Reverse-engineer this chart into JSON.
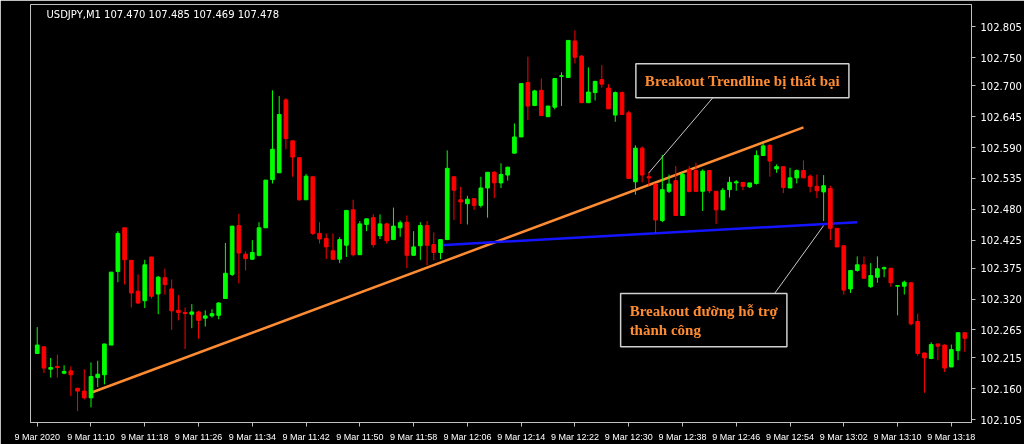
{
  "chart_data": {
    "type": "candlestick",
    "title": "USDJPY,M1  107.470 107.485 107.469 107.478",
    "x": [
      "2020-03-09T11:02",
      "2020-03-09T11:03",
      "2020-03-09T11:04",
      "2020-03-09T11:05",
      "2020-03-09T11:06",
      "2020-03-09T11:07",
      "2020-03-09T11:08",
      "2020-03-09T11:09",
      "2020-03-09T11:10",
      "2020-03-09T11:11",
      "2020-03-09T11:12",
      "2020-03-09T11:13",
      "2020-03-09T11:14",
      "2020-03-09T11:15",
      "2020-03-09T11:16",
      "2020-03-09T11:17",
      "2020-03-09T11:18",
      "2020-03-09T11:19",
      "2020-03-09T11:20",
      "2020-03-09T11:21",
      "2020-03-09T11:22",
      "2020-03-09T11:23",
      "2020-03-09T11:24",
      "2020-03-09T11:25",
      "2020-03-09T11:26",
      "2020-03-09T11:27",
      "2020-03-09T11:28",
      "2020-03-09T11:29",
      "2020-03-09T11:30",
      "2020-03-09T11:31",
      "2020-03-09T11:32",
      "2020-03-09T11:33",
      "2020-03-09T11:34",
      "2020-03-09T11:35",
      "2020-03-09T11:36",
      "2020-03-09T11:37",
      "2020-03-09T11:38",
      "2020-03-09T11:39",
      "2020-03-09T11:40",
      "2020-03-09T11:41",
      "2020-03-09T11:42",
      "2020-03-09T11:43",
      "2020-03-09T11:44",
      "2020-03-09T11:45",
      "2020-03-09T11:46",
      "2020-03-09T11:47",
      "2020-03-09T11:48",
      "2020-03-09T11:49",
      "2020-03-09T11:50",
      "2020-03-09T11:51",
      "2020-03-09T11:52",
      "2020-03-09T11:53",
      "2020-03-09T11:54",
      "2020-03-09T11:55",
      "2020-03-09T11:56",
      "2020-03-09T11:57",
      "2020-03-09T11:58",
      "2020-03-09T11:59",
      "2020-03-09T12:00",
      "2020-03-09T12:01",
      "2020-03-09T12:02",
      "2020-03-09T12:03",
      "2020-03-09T12:04",
      "2020-03-09T12:05",
      "2020-03-09T12:06",
      "2020-03-09T12:07",
      "2020-03-09T12:08",
      "2020-03-09T12:09",
      "2020-03-09T12:10",
      "2020-03-09T12:11",
      "2020-03-09T12:12",
      "2020-03-09T12:13",
      "2020-03-09T12:14",
      "2020-03-09T12:15",
      "2020-03-09T12:16",
      "2020-03-09T12:17",
      "2020-03-09T12:18",
      "2020-03-09T12:19",
      "2020-03-09T12:20",
      "2020-03-09T12:21",
      "2020-03-09T12:22",
      "2020-03-09T12:23",
      "2020-03-09T12:24",
      "2020-03-09T12:25",
      "2020-03-09T12:26",
      "2020-03-09T12:27",
      "2020-03-09T12:28",
      "2020-03-09T12:29",
      "2020-03-09T12:30",
      "2020-03-09T12:31",
      "2020-03-09T12:32",
      "2020-03-09T12:33",
      "2020-03-09T12:34",
      "2020-03-09T12:35",
      "2020-03-09T12:36",
      "2020-03-09T12:37",
      "2020-03-09T12:38",
      "2020-03-09T12:39",
      "2020-03-09T12:40",
      "2020-03-09T12:41",
      "2020-03-09T12:42",
      "2020-03-09T12:43",
      "2020-03-09T12:44",
      "2020-03-09T12:45",
      "2020-03-09T12:46",
      "2020-03-09T12:47",
      "2020-03-09T12:48",
      "2020-03-09T12:49",
      "2020-03-09T12:50",
      "2020-03-09T12:51",
      "2020-03-09T12:52",
      "2020-03-09T12:53",
      "2020-03-09T12:54",
      "2020-03-09T12:55",
      "2020-03-09T12:56",
      "2020-03-09T12:57",
      "2020-03-09T12:58",
      "2020-03-09T12:59",
      "2020-03-09T13:00",
      "2020-03-09T13:01",
      "2020-03-09T13:02",
      "2020-03-09T13:03",
      "2020-03-09T13:04",
      "2020-03-09T13:05",
      "2020-03-09T13:06",
      "2020-03-09T13:07",
      "2020-03-09T13:08",
      "2020-03-09T13:09",
      "2020-03-09T13:10",
      "2020-03-09T13:11",
      "2020-03-09T13:12",
      "2020-03-09T13:13",
      "2020-03-09T13:14",
      "2020-03-09T13:15",
      "2020-03-09T13:16",
      "2020-03-09T13:17",
      "2020-03-09T13:18",
      "2020-03-09T13:19",
      "2020-03-09T13:20"
    ],
    "ohlc": [
      [
        102.223,
        102.27,
        102.223,
        102.238
      ],
      [
        102.235,
        102.235,
        102.188,
        102.197
      ],
      [
        102.195,
        102.215,
        102.18,
        102.198
      ],
      [
        102.2,
        102.221,
        102.18,
        102.198
      ],
      [
        102.188,
        102.202,
        102.186,
        102.191
      ],
      [
        102.192,
        102.2,
        102.147,
        102.185
      ],
      [
        102.161,
        102.161,
        102.12,
        102.156
      ],
      [
        102.156,
        102.195,
        102.141,
        102.144
      ],
      [
        102.144,
        102.207,
        102.127,
        102.182
      ],
      [
        102.18,
        102.21,
        102.163,
        102.186
      ],
      [
        102.185,
        102.24,
        102.168,
        102.24
      ],
      [
        102.238,
        102.368,
        102.238,
        102.368
      ],
      [
        102.369,
        102.441,
        102.35,
        102.437
      ],
      [
        102.447,
        102.447,
        102.346,
        102.39
      ],
      [
        102.389,
        102.389,
        102.305,
        102.331
      ],
      [
        102.334,
        102.364,
        102.311,
        102.313
      ],
      [
        102.317,
        102.39,
        102.304,
        102.381
      ],
      [
        102.395,
        102.395,
        102.321,
        102.325
      ],
      [
        102.329,
        102.361,
        102.293,
        102.359
      ],
      [
        102.358,
        102.374,
        102.328,
        102.346
      ],
      [
        102.338,
        102.355,
        102.265,
        102.299
      ],
      [
        102.3,
        102.327,
        102.282,
        102.296
      ],
      [
        102.296,
        102.305,
        102.231,
        102.294
      ],
      [
        102.293,
        102.311,
        102.268,
        102.297
      ],
      [
        102.297,
        102.299,
        102.249,
        102.282
      ],
      [
        102.286,
        102.3,
        102.271,
        102.29
      ],
      [
        102.29,
        102.302,
        102.287,
        102.294
      ],
      [
        102.291,
        102.314,
        102.284,
        102.313
      ],
      [
        102.321,
        102.42,
        102.321,
        102.366
      ],
      [
        102.364,
        102.45,
        102.361,
        102.45
      ],
      [
        102.451,
        102.472,
        102.348,
        102.402
      ],
      [
        102.4,
        102.405,
        102.371,
        102.392
      ],
      [
        102.391,
        102.425,
        102.39,
        102.403
      ],
      [
        102.398,
        102.457,
        102.396,
        102.447
      ],
      [
        102.447,
        102.532,
        102.447,
        102.532
      ],
      [
        102.533,
        102.692,
        102.526,
        102.587
      ],
      [
        102.545,
        102.682,
        102.545,
        102.649
      ],
      [
        102.675,
        102.678,
        102.587,
        102.606
      ],
      [
        102.602,
        102.602,
        102.538,
        102.573
      ],
      [
        102.572,
        102.572,
        102.495,
        102.497
      ],
      [
        102.497,
        102.543,
        102.497,
        102.539
      ],
      [
        102.538,
        102.538,
        102.434,
        102.437
      ],
      [
        102.437,
        102.457,
        102.419,
        102.427
      ],
      [
        102.428,
        102.437,
        102.391,
        102.413
      ],
      [
        102.406,
        102.437,
        102.39,
        102.391
      ],
      [
        102.391,
        102.43,
        102.384,
        102.426
      ],
      [
        102.416,
        102.478,
        102.395,
        102.478
      ],
      [
        102.479,
        102.497,
        102.396,
        102.399
      ],
      [
        102.399,
        102.459,
        102.399,
        102.454
      ],
      [
        102.453,
        102.463,
        102.441,
        102.463
      ],
      [
        102.465,
        102.471,
        102.412,
        102.417
      ],
      [
        102.433,
        102.471,
        102.427,
        102.454
      ],
      [
        102.454,
        102.456,
        102.419,
        102.424
      ],
      [
        102.426,
        102.483,
        102.425,
        102.45
      ],
      [
        102.447,
        102.46,
        102.431,
        102.456
      ],
      [
        102.457,
        102.469,
        102.375,
        102.398
      ],
      [
        102.398,
        102.441,
        102.397,
        102.413
      ],
      [
        102.415,
        102.457,
        102.39,
        102.451
      ],
      [
        102.451,
        102.459,
        102.38,
        102.416
      ],
      [
        102.417,
        102.439,
        102.389,
        102.403
      ],
      [
        102.403,
        102.426,
        102.391,
        102.426
      ],
      [
        102.426,
        102.585,
        102.426,
        102.553
      ],
      [
        102.538,
        102.538,
        102.461,
        102.514
      ],
      [
        102.497,
        102.52,
        102.454,
        102.493
      ],
      [
        102.49,
        102.504,
        102.453,
        102.498
      ],
      [
        102.499,
        102.499,
        102.479,
        102.487
      ],
      [
        102.487,
        102.538,
        102.483,
        102.518
      ],
      [
        102.518,
        102.546,
        102.465,
        102.546
      ],
      [
        102.546,
        102.548,
        102.5,
        102.527
      ],
      [
        102.527,
        102.562,
        102.518,
        102.542
      ],
      [
        102.541,
        102.556,
        102.531,
        102.555
      ],
      [
        102.58,
        102.633,
        102.58,
        102.609
      ],
      [
        102.609,
        102.704,
        102.609,
        102.704
      ],
      [
        102.706,
        102.752,
        102.639,
        102.664
      ],
      [
        102.665,
        102.693,
        102.664,
        102.691
      ],
      [
        102.692,
        102.713,
        102.647,
        102.647
      ],
      [
        102.645,
        102.664,
        102.645,
        102.664
      ],
      [
        102.662,
        102.713,
        102.658,
        102.713
      ],
      [
        102.717,
        102.724,
        102.664,
        102.718
      ],
      [
        102.715,
        102.781,
        102.715,
        102.781
      ],
      [
        102.78,
        102.799,
        102.74,
        102.751
      ],
      [
        102.753,
        102.755,
        102.67,
        102.67
      ],
      [
        102.67,
        102.733,
        102.67,
        102.689
      ],
      [
        102.688,
        102.709,
        102.674,
        102.708
      ],
      [
        102.711,
        102.737,
        102.697,
        102.703
      ],
      [
        102.696,
        102.703,
        102.659,
        102.659
      ],
      [
        102.648,
        102.69,
        102.636,
        102.688
      ],
      [
        102.688,
        102.69,
        102.649,
        102.649
      ],
      [
        102.652,
        102.655,
        102.535,
        102.535
      ],
      [
        102.529,
        102.594,
        102.506,
        102.589
      ],
      [
        102.589,
        102.592,
        102.528,
        102.541
      ],
      [
        102.538,
        102.546,
        102.522,
        102.536
      ],
      [
        102.525,
        102.525,
        102.438,
        102.461
      ],
      [
        102.46,
        102.577,
        102.457,
        102.515
      ],
      [
        102.512,
        102.542,
        102.509,
        102.525
      ],
      [
        102.531,
        102.557,
        102.469,
        102.469
      ],
      [
        102.469,
        102.545,
        102.469,
        102.542
      ],
      [
        102.551,
        102.557,
        102.51,
        102.512
      ],
      [
        102.549,
        102.563,
        102.512,
        102.512
      ],
      [
        102.512,
        102.551,
        102.477,
        102.548
      ],
      [
        102.549,
        102.549,
        102.509,
        102.513
      ],
      [
        102.512,
        102.512,
        102.454,
        102.479
      ],
      [
        102.479,
        102.518,
        102.478,
        102.514
      ],
      [
        102.515,
        102.538,
        102.501,
        102.528
      ],
      [
        102.527,
        102.532,
        102.513,
        102.529
      ],
      [
        102.528,
        102.528,
        102.514,
        102.521
      ],
      [
        102.52,
        102.527,
        102.518,
        102.527
      ],
      [
        102.526,
        102.585,
        102.524,
        102.576
      ],
      [
        102.576,
        102.598,
        102.575,
        102.593
      ],
      [
        102.594,
        102.596,
        102.538,
        102.566
      ],
      [
        102.552,
        102.56,
        102.545,
        102.556
      ],
      [
        102.556,
        102.556,
        102.509,
        102.519
      ],
      [
        102.518,
        102.554,
        102.518,
        102.536
      ],
      [
        102.536,
        102.551,
        102.526,
        102.549
      ],
      [
        102.549,
        102.567,
        102.536,
        102.536
      ],
      [
        102.539,
        102.542,
        102.51,
        102.521
      ],
      [
        102.521,
        102.542,
        102.5,
        102.513
      ],
      [
        102.511,
        102.541,
        102.459,
        102.522
      ],
      [
        102.517,
        102.522,
        102.425,
        102.446
      ],
      [
        102.446,
        102.446,
        102.412,
        102.413
      ],
      [
        102.415,
        102.415,
        102.328,
        102.336
      ],
      [
        102.338,
        102.371,
        102.331,
        102.371
      ],
      [
        102.371,
        102.396,
        102.369,
        102.381
      ],
      [
        102.381,
        102.396,
        102.357,
        102.357
      ],
      [
        102.342,
        102.384,
        102.34,
        102.362
      ],
      [
        102.359,
        102.396,
        102.349,
        102.374
      ],
      [
        102.374,
        102.378,
        102.359,
        102.376
      ],
      [
        102.375,
        102.375,
        102.342,
        102.349
      ],
      [
        102.343,
        102.344,
        102.291,
        102.344
      ],
      [
        102.343,
        102.353,
        102.328,
        102.35
      ],
      [
        102.349,
        102.349,
        102.273,
        102.276
      ],
      [
        102.28,
        102.294,
        102.219,
        102.223
      ],
      [
        102.224,
        102.224,
        102.153,
        102.215
      ],
      [
        102.214,
        102.243,
        102.213,
        102.239
      ],
      [
        102.24,
        102.24,
        102.211,
        102.236
      ],
      [
        102.238,
        102.239,
        102.19,
        102.197
      ],
      [
        102.199,
        102.239,
        102.199,
        102.23
      ],
      [
        102.228,
        102.26,
        102.211,
        102.26
      ],
      [
        102.26,
        102.26,
        102.226,
        102.25
      ]
    ],
    "colors": [
      "#00ff00",
      "#ff0000",
      "#00ff00",
      "#ff0000",
      "#00ff00",
      "#ff0000",
      "#ff0000",
      "#ff0000",
      "#00ff00",
      "#00ff00",
      "#00ff00",
      "#00ff00",
      "#00ff00",
      "#ff0000",
      "#ff0000",
      "#ff0000",
      "#00ff00",
      "#ff0000",
      "#00ff00",
      "#ff0000",
      "#ff0000",
      "#ff0000",
      "#ff0000",
      "#00ff00",
      "#ff0000",
      "#00ff00",
      "#00ff00",
      "#00ff00",
      "#00ff00",
      "#00ff00",
      "#ff0000",
      "#ff0000",
      "#00ff00",
      "#00ff00",
      "#00ff00",
      "#00ff00",
      "#00ff00",
      "#ff0000",
      "#ff0000",
      "#ff0000",
      "#00ff00",
      "#ff0000",
      "#ff0000",
      "#ff0000",
      "#ff0000",
      "#00ff00",
      "#00ff00",
      "#ff0000",
      "#00ff00",
      "#00ff00",
      "#ff0000",
      "#00ff00",
      "#ff0000",
      "#00ff00",
      "#00ff00",
      "#ff0000",
      "#00ff00",
      "#00ff00",
      "#ff0000",
      "#ff0000",
      "#00ff00",
      "#00ff00",
      "#ff0000",
      "#ff0000",
      "#00ff00",
      "#ff0000",
      "#00ff00",
      "#00ff00",
      "#ff0000",
      "#00ff00",
      "#00ff00",
      "#00ff00",
      "#00ff00",
      "#ff0000",
      "#00ff00",
      "#ff0000",
      "#00ff00",
      "#00ff00",
      "#00ff00",
      "#00ff00",
      "#ff0000",
      "#ff0000",
      "#00ff00",
      "#00ff00",
      "#ff0000",
      "#ff0000",
      "#00ff00",
      "#ff0000",
      "#ff0000",
      "#00ff00",
      "#ff0000",
      "#ff0000",
      "#ff0000",
      "#00ff00",
      "#00ff00",
      "#ff0000",
      "#00ff00",
      "#ff0000",
      "#ff0000",
      "#00ff00",
      "#ff0000",
      "#ff0000",
      "#00ff00",
      "#00ff00",
      "#00ff00",
      "#ff0000",
      "#00ff00",
      "#00ff00",
      "#00ff00",
      "#ff0000",
      "#00ff00",
      "#ff0000",
      "#00ff00",
      "#00ff00",
      "#ff0000",
      "#ff0000",
      "#ff0000",
      "#00ff00",
      "#ff0000",
      "#ff0000",
      "#ff0000",
      "#00ff00",
      "#00ff00",
      "#ff0000",
      "#00ff00",
      "#00ff00",
      "#00ff00",
      "#ff0000",
      "#00ff00",
      "#00ff00",
      "#ff0000",
      "#ff0000",
      "#ff0000",
      "#00ff00",
      "#ff0000",
      "#ff0000",
      "#00ff00",
      "#00ff00",
      "#ff0000"
    ],
    "series": [
      {
        "type": "line",
        "color": "#ff8c32",
        "x": [
          "2020-03-09T11:10",
          "2020-03-09T12:56"
        ],
        "values": [
          102.153,
          102.626
        ]
      },
      {
        "type": "line",
        "color": "#1414ff",
        "x": [
          "2020-03-09T12:02",
          "2020-03-09T13:04"
        ],
        "values": [
          102.416,
          102.457
        ]
      }
    ],
    "xlim": [
      "2020-03-09T11:01",
      "2020-03-09T13:21"
    ],
    "xticks": [
      {
        "value": "2020-03-09T11:02",
        "label": "9 Mar 2020"
      },
      {
        "value": "2020-03-09T11:10",
        "label": "9 Mar 11:10"
      },
      {
        "value": "2020-03-09T11:18",
        "label": "9 Mar 11:18"
      },
      {
        "value": "2020-03-09T11:26",
        "label": "9 Mar 11:26"
      },
      {
        "value": "2020-03-09T11:34",
        "label": "9 Mar 11:34"
      },
      {
        "value": "2020-03-09T11:42",
        "label": "9 Mar 11:42"
      },
      {
        "value": "2020-03-09T11:50",
        "label": "9 Mar 11:50"
      },
      {
        "value": "2020-03-09T11:58",
        "label": "9 Mar 11:58"
      },
      {
        "value": "2020-03-09T12:06",
        "label": "9 Mar 12:06"
      },
      {
        "value": "2020-03-09T12:14",
        "label": "9 Mar 12:14"
      },
      {
        "value": "2020-03-09T12:22",
        "label": "9 Mar 12:22"
      },
      {
        "value": "2020-03-09T12:30",
        "label": "9 Mar 12:30"
      },
      {
        "value": "2020-03-09T12:38",
        "label": "9 Mar 12:38"
      },
      {
        "value": "2020-03-09T12:46",
        "label": "9 Mar 12:46"
      },
      {
        "value": "2020-03-09T12:54",
        "label": "9 Mar 12:54"
      },
      {
        "value": "2020-03-09T13:02",
        "label": "9 Mar 13:02"
      },
      {
        "value": "2020-03-09T13:10",
        "label": "9 Mar 13:10"
      },
      {
        "value": "2020-03-09T13:18",
        "label": "9 Mar 13:18"
      }
    ],
    "ylim": [
      102.1,
      102.845
    ],
    "yticks": [
      102.805,
      {
        "value": 102.75,
        "label": "102.750"
      },
      {
        "value": 102.7,
        "label": "102.700"
      },
      102.645,
      {
        "value": 102.59,
        "label": "102.590"
      },
      102.535,
      {
        "value": 102.48,
        "label": "102.480"
      },
      102.425,
      102.375,
      {
        "value": 102.32,
        "label": "102.320"
      },
      102.265,
      102.215,
      {
        "value": 102.16,
        "label": "102.160"
      },
      102.105
    ],
    "annotations": [
      {
        "text": "Breakout Trendline bị thất bại",
        "x": "2020-03-09T12:33",
        "y": 102.545
      },
      {
        "text": "Breakout đường hỗ trợ\nthành công",
        "x": "2020-03-09T12:59",
        "y": 102.451
      }
    ]
  }
}
